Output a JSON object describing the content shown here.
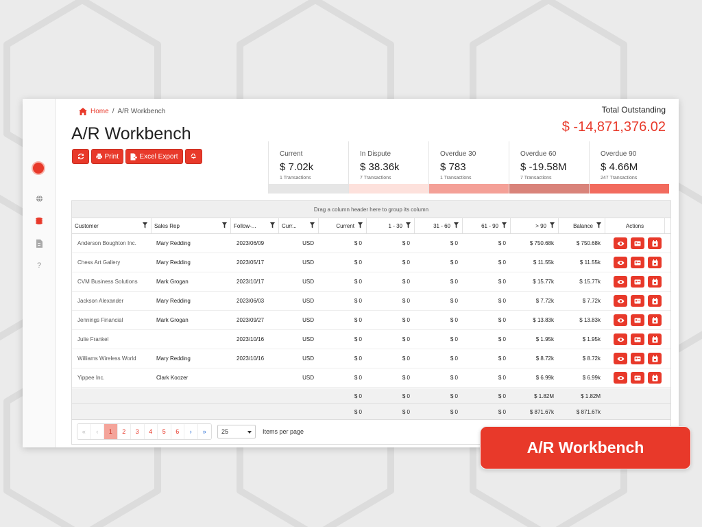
{
  "breadcrumb": {
    "home": "Home",
    "separator": "/",
    "current": "A/R Workbench"
  },
  "page_title": "A/R Workbench",
  "toolbar": {
    "print": "Print",
    "excel": "Excel Export"
  },
  "total": {
    "label": "Total Outstanding",
    "value": "$ -14,871,376.02"
  },
  "cards": [
    {
      "label": "Current",
      "value": "$ 7.02k",
      "sub": "1 Transactions",
      "bar_color": "#e6e6e6"
    },
    {
      "label": "In Dispute",
      "value": "$ 38.36k",
      "sub": "7 Transactions",
      "bar_color": "#fde1dc"
    },
    {
      "label": "Overdue 30",
      "value": "$ 783",
      "sub": "1 Transactions",
      "bar_color": "#f4a097"
    },
    {
      "label": "Overdue 60",
      "value": "$ -19.58M",
      "sub": "7 Transactions",
      "bar_color": "#d9837a"
    },
    {
      "label": "Overdue 90",
      "value": "$ 4.66M",
      "sub": "247 Transactions",
      "bar_color": "#f26b5e"
    }
  ],
  "grid": {
    "group_hint": "Drag a column header here to group its column",
    "columns": [
      "Customer",
      "Sales Rep",
      "Follow-...",
      "Curr...",
      "Current",
      "1 - 30",
      "31 - 60",
      "61 - 90",
      "> 90",
      "Balance",
      "Actions"
    ],
    "rows": [
      [
        "Anderson Boughton Inc.",
        "Mary Redding",
        "2023/06/09",
        "USD",
        "$ 0",
        "$ 0",
        "$ 0",
        "$ 0",
        "$ 750.68k",
        "$ 750.68k"
      ],
      [
        "Chess Art Gallery",
        "Mary Redding",
        "2023/05/17",
        "USD",
        "$ 0",
        "$ 0",
        "$ 0",
        "$ 0",
        "$ 11.55k",
        "$ 11.55k"
      ],
      [
        "CVM Business Solutions",
        "Mark Grogan",
        "2023/10/17",
        "USD",
        "$ 0",
        "$ 0",
        "$ 0",
        "$ 0",
        "$ 15.77k",
        "$ 15.77k"
      ],
      [
        "Jackson Alexander",
        "Mary Redding",
        "2023/06/03",
        "USD",
        "$ 0",
        "$ 0",
        "$ 0",
        "$ 0",
        "$ 7.72k",
        "$ 7.72k"
      ],
      [
        "Jennings Financial",
        "Mark Grogan",
        "2023/09/27",
        "USD",
        "$ 0",
        "$ 0",
        "$ 0",
        "$ 0",
        "$ 13.83k",
        "$ 13.83k"
      ],
      [
        "Julie Frankel",
        "",
        "2023/10/16",
        "USD",
        "$ 0",
        "$ 0",
        "$ 0",
        "$ 0",
        "$ 1.95k",
        "$ 1.95k"
      ],
      [
        "Williams Wireless World",
        "Mary Redding",
        "2023/10/16",
        "USD",
        "$ 0",
        "$ 0",
        "$ 0",
        "$ 0",
        "$ 8.72k",
        "$ 8.72k"
      ],
      [
        "Yippee Inc.",
        "Clark Koozer",
        "",
        "USD",
        "$ 0",
        "$ 0",
        "$ 0",
        "$ 0",
        "$ 6.99k",
        "$ 6.99k"
      ]
    ],
    "footers": [
      [
        "$ 0",
        "$ 0",
        "$ 0",
        "$ 0",
        "$ 1.82M",
        "$ 1.82M"
      ],
      [
        "$ 0",
        "$ 0",
        "$ 0",
        "$ 0",
        "$ 871.67k",
        "$ 871.67k"
      ]
    ]
  },
  "pager": {
    "pages": [
      "1",
      "2",
      "3",
      "4",
      "5",
      "6"
    ],
    "active_page": "1",
    "page_size": "25",
    "label": "Items per page"
  },
  "badge": "A/R Workbench",
  "colors": {
    "accent": "#e8392a"
  },
  "icons": {
    "sidebar": [
      "globe-icon",
      "coins-icon",
      "document-icon",
      "help-icon"
    ],
    "actions": [
      "eye-icon",
      "card-icon",
      "calendar-icon"
    ]
  }
}
